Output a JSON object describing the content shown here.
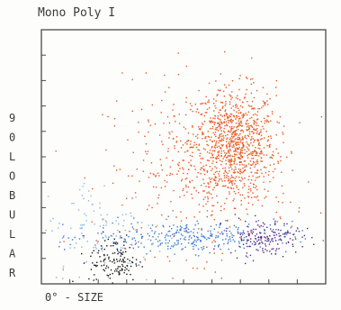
{
  "chart_data": {
    "type": "scatter",
    "title": "Mono Poly I",
    "xlabel": "0° - SIZE",
    "ylabel_chars": [
      "9",
      "0",
      "L",
      "O",
      "B",
      "U",
      "L",
      "A",
      "R"
    ],
    "xlim": [
      0,
      1023
    ],
    "ylim": [
      0,
      1023
    ],
    "x_ticks_count": 10,
    "y_ticks_count": 10,
    "grid": false,
    "legend": "none",
    "colors": {
      "granulocytes": "#ec5a26",
      "monocytes": "#5a2a8c",
      "lymphocytes": "#3f7ad6",
      "debris": "#1a1a1a",
      "scatter_low": "#86b7e6"
    },
    "clusters": [
      {
        "cx": 690,
        "cy": 560,
        "sx": 75,
        "sy": 115,
        "n": 900,
        "color_key": "granulocytes"
      },
      {
        "cx": 560,
        "cy": 470,
        "sx": 170,
        "sy": 170,
        "n": 360,
        "color_key": "granulocytes"
      },
      {
        "cx": 540,
        "cy": 190,
        "sx": 180,
        "sy": 32,
        "n": 320,
        "color_key": "lymphocytes"
      },
      {
        "cx": 260,
        "cy": 95,
        "sx": 45,
        "sy": 55,
        "n": 140,
        "color_key": "debris"
      },
      {
        "cx": 210,
        "cy": 210,
        "sx": 120,
        "sy": 110,
        "n": 120,
        "color_key": "scatter_low"
      },
      {
        "cx": 800,
        "cy": 190,
        "sx": 65,
        "sy": 35,
        "n": 150,
        "color_key": "monocytes"
      }
    ]
  }
}
